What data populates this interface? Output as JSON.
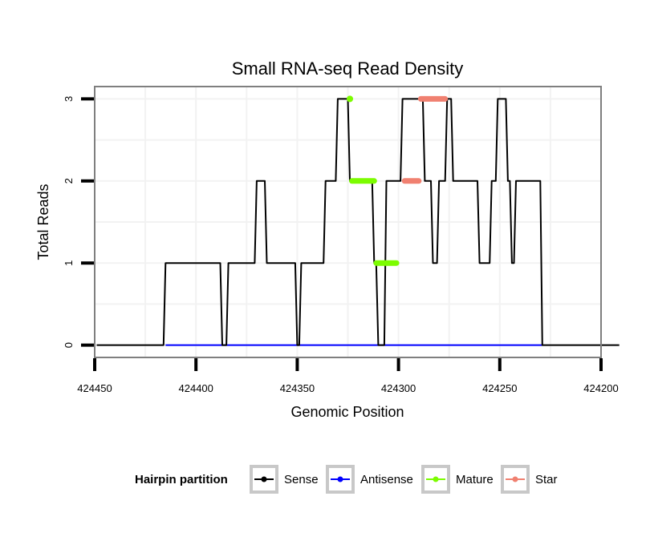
{
  "chart_data": {
    "type": "line",
    "title": "Small RNA-seq Read Density",
    "xlabel": "Genomic Position",
    "ylabel": "Total Reads",
    "xlim": [
      424450,
      424200
    ],
    "x_reversed": true,
    "ylim": [
      -0.15,
      3.15
    ],
    "xticks": [
      424450,
      424400,
      424350,
      424300,
      424250,
      424200
    ],
    "xtick_labels": [
      "424450",
      "424400",
      "424350",
      "424300",
      "424250",
      "424200"
    ],
    "yticks": [
      0,
      1,
      2,
      3
    ],
    "ytick_labels": [
      "0",
      "1",
      "2",
      "3"
    ],
    "grid": true,
    "legend": {
      "title": "Hairpin partition",
      "position": "bottom",
      "entries": [
        {
          "label": "Sense",
          "color": "#000000"
        },
        {
          "label": "Antisense",
          "color": "#0000ff"
        },
        {
          "label": "Mature",
          "color": "#7cfc00"
        },
        {
          "label": "Star",
          "color": "#f08070"
        }
      ]
    },
    "series": [
      {
        "name": "Sense",
        "color": "#000000",
        "x": [
          424449,
          424416,
          424415,
          424388,
          424387,
          424385,
          424384,
          424371,
          424370,
          424366,
          424365,
          424351,
          424350,
          424349,
          424348,
          424337,
          424336,
          424331,
          424330,
          424325,
          424324,
          424313,
          424312,
          424311,
          424310,
          424307,
          424306,
          424299,
          424298,
          424288,
          424287,
          424284,
          424283,
          424281,
          424280,
          424277,
          424276,
          424274,
          424273,
          424261,
          424260,
          424255,
          424254,
          424252,
          424251,
          424247,
          424246,
          424245,
          424244,
          424243,
          424242,
          424230,
          424229,
          424191
        ],
        "y": [
          0,
          0,
          1,
          1,
          0,
          0,
          1,
          1,
          2,
          2,
          1,
          1,
          0,
          0,
          1,
          1,
          2,
          2,
          3,
          3,
          2,
          2,
          1,
          1,
          0,
          0,
          2,
          2,
          3,
          3,
          2,
          2,
          1,
          1,
          2,
          2,
          3,
          3,
          2,
          2,
          1,
          1,
          2,
          2,
          3,
          3,
          2,
          2,
          1,
          1,
          2,
          2,
          0,
          0
        ]
      },
      {
        "name": "Antisense",
        "color": "#0000ff",
        "x": [
          424415,
          424229
        ],
        "y": [
          0,
          0
        ]
      }
    ],
    "highlights": [
      {
        "name": "Mature",
        "color": "#7cfc00",
        "x": [
          424324
        ],
        "y": [
          3
        ]
      },
      {
        "name": "Mature",
        "color": "#7cfc00",
        "x_range": [
          424323,
          424312
        ],
        "y": 2
      },
      {
        "name": "Mature",
        "color": "#7cfc00",
        "x_range": [
          424311,
          424301
        ],
        "y": 1
      },
      {
        "name": "Star",
        "color": "#f08070",
        "x_range": [
          424297,
          424290
        ],
        "y": 2
      },
      {
        "name": "Star",
        "color": "#f08070",
        "x_range": [
          424289,
          424277
        ],
        "y": 3
      }
    ]
  }
}
